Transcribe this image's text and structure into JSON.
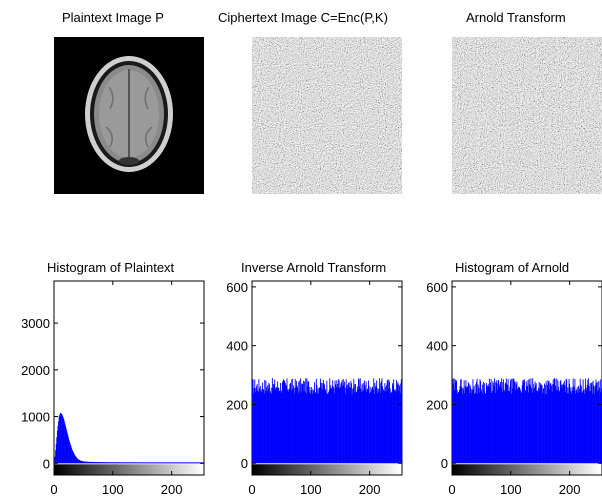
{
  "panels": {
    "plaintext": {
      "title": "Plaintext Image P"
    },
    "ciphertext": {
      "title": "Ciphertext Image C=Enc(P,K)"
    },
    "arnold": {
      "title": "Arnold Transform"
    }
  },
  "chart_data": [
    {
      "type": "bar",
      "title": "Histogram of Plaintext",
      "xlabel": "",
      "ylabel": "",
      "xlim": [
        0,
        255
      ],
      "ylim": [
        -250,
        3900
      ],
      "xticks": [
        0,
        100,
        200
      ],
      "yticks": [
        0,
        1000,
        2000,
        3000
      ],
      "x": [
        0,
        5,
        8,
        10,
        13,
        16,
        20,
        25,
        30,
        35,
        40,
        45,
        50,
        60,
        80,
        100,
        150,
        200,
        255
      ],
      "values": [
        0,
        700,
        1000,
        1080,
        1050,
        950,
        750,
        500,
        300,
        170,
        90,
        55,
        40,
        30,
        25,
        22,
        20,
        20,
        20
      ],
      "colorbar": "grayscale",
      "bar_color": "#0000ff"
    },
    {
      "type": "bar",
      "title": "Inverse Arnold Transform",
      "xlabel": "",
      "ylabel": "",
      "xlim": [
        0,
        255
      ],
      "ylim": [
        -40,
        620
      ],
      "xticks": [
        0,
        100,
        200
      ],
      "yticks": [
        0,
        200,
        400,
        600
      ],
      "mean_value": 256,
      "range": [
        235,
        290
      ],
      "colorbar": "grayscale",
      "bar_color": "#0000ff"
    },
    {
      "type": "bar",
      "title": "Histogram of Arnold",
      "xlabel": "",
      "ylabel": "",
      "xlim": [
        0,
        255
      ],
      "ylim": [
        -40,
        620
      ],
      "xticks": [
        0,
        100,
        200
      ],
      "yticks": [
        0,
        200,
        400,
        600
      ],
      "mean_value": 256,
      "range": [
        235,
        290
      ],
      "colorbar": "grayscale",
      "bar_color": "#0000ff"
    }
  ]
}
